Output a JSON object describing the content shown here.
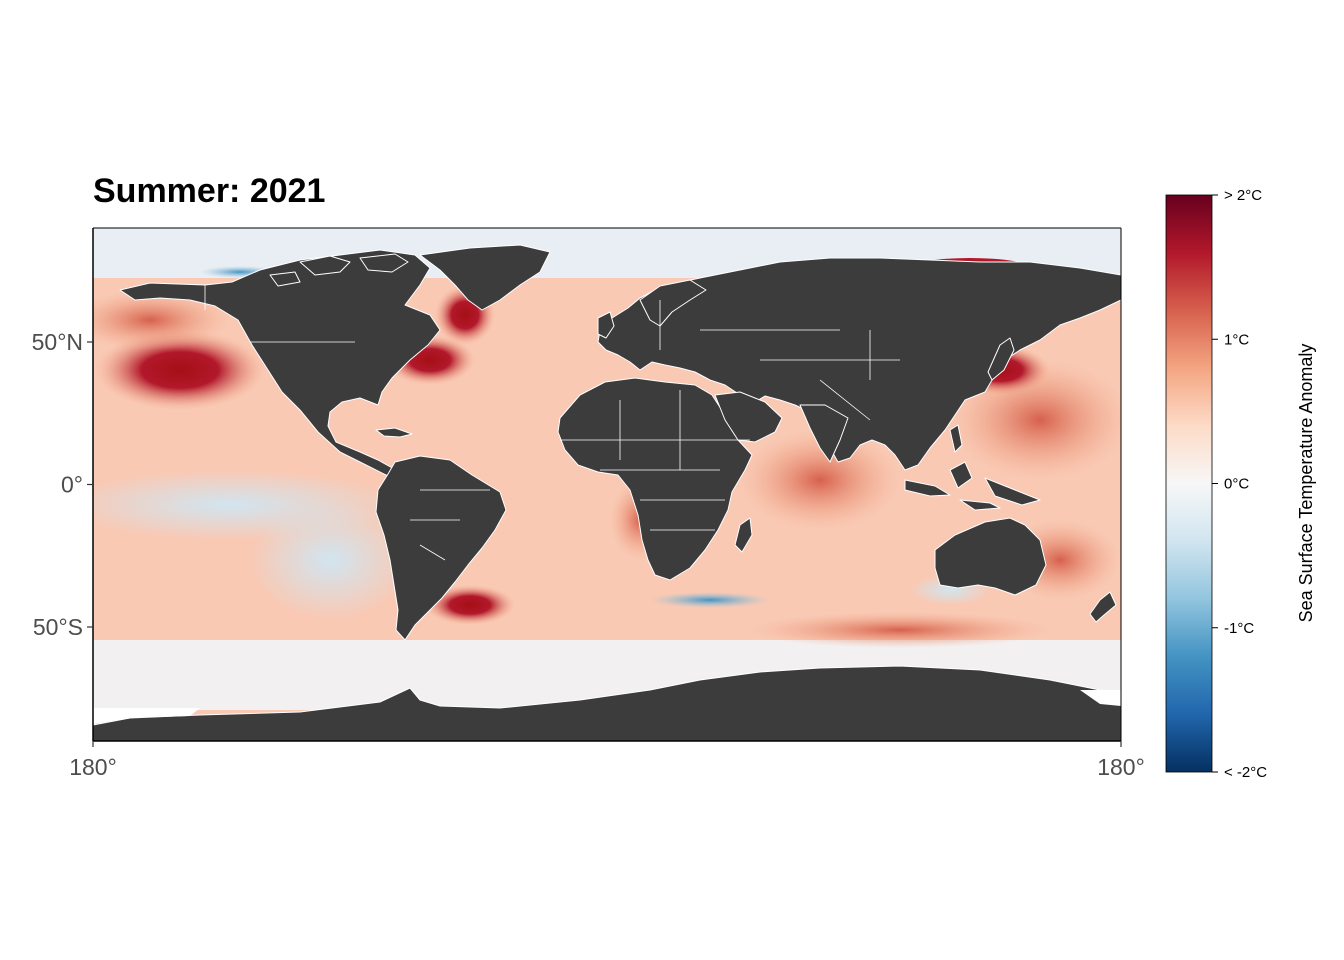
{
  "map": {
    "title": "Summer: 2021",
    "y_ticks": [
      {
        "lat": 50,
        "label": "50°N"
      },
      {
        "lat": 0,
        "label": "0°"
      },
      {
        "lat": -50,
        "label": "50°S"
      }
    ],
    "x_ticks": [
      {
        "lon": -180,
        "label": "180°"
      },
      {
        "lon": 180,
        "label": "180°"
      }
    ],
    "extent": {
      "lon": [
        -180,
        180
      ],
      "lat": [
        -90,
        90
      ]
    },
    "land_color": "#3c3c3c",
    "border_color": "#ffffff",
    "ice_color": "#ffffff"
  },
  "colorbar": {
    "title": "Sea Surface Temperature Anomaly",
    "range": [
      -2,
      2
    ],
    "ticks": [
      {
        "value": 2,
        "label": "> 2°C"
      },
      {
        "value": 1,
        "label": "1°C"
      },
      {
        "value": 0,
        "label": "0°C"
      },
      {
        "value": -1,
        "label": "-1°C"
      },
      {
        "value": -2,
        "label": "< -2°C"
      }
    ],
    "colors": [
      "#053061",
      "#2166ac",
      "#4393c3",
      "#92c5de",
      "#d1e5f0",
      "#f7f7f7",
      "#fddbc7",
      "#f4a582",
      "#d6604d",
      "#b2182b",
      "#67001f"
    ]
  }
}
